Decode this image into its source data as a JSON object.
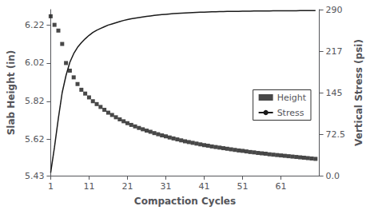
{
  "chart_data": {
    "type": "line",
    "xlabel": "Compaction Cycles",
    "ylabel": "Slab Height (in)",
    "y2label": "Vertical Stress (psi)",
    "xlim": [
      1,
      71
    ],
    "xticks": [
      1,
      11,
      21,
      31,
      41,
      51,
      61
    ],
    "ylim": [
      5.43,
      6.3
    ],
    "yticks": [
      5.43,
      5.62,
      5.82,
      6.02,
      6.22
    ],
    "y2lim": [
      0.0,
      290.0
    ],
    "y2ticks": [
      {
        "value": 0.0,
        "label": "0.0"
      },
      72.5,
      145,
      217,
      290
    ],
    "grid": false,
    "legend": "right",
    "x": [
      1,
      2,
      3,
      4,
      5,
      6,
      7,
      8,
      9,
      10,
      11,
      12,
      13,
      14,
      15,
      16,
      17,
      18,
      19,
      20,
      21,
      22,
      23,
      24,
      25,
      26,
      27,
      28,
      29,
      30,
      31,
      32,
      33,
      34,
      35,
      36,
      37,
      38,
      39,
      40,
      41,
      42,
      43,
      44,
      45,
      46,
      47,
      48,
      49,
      50,
      51,
      52,
      53,
      54,
      55,
      56,
      57,
      58,
      59,
      60,
      61,
      62,
      63,
      64,
      65,
      66,
      67,
      68,
      69,
      70
    ],
    "series": [
      {
        "name": "Height",
        "type": "scatter",
        "marker": "square",
        "color": "#1a1a1a",
        "values": [
          6.265,
          6.22,
          6.19,
          6.12,
          6.02,
          5.98,
          5.945,
          5.91,
          5.88,
          5.86,
          5.84,
          5.82,
          5.805,
          5.79,
          5.775,
          5.76,
          5.748,
          5.736,
          5.725,
          5.715,
          5.705,
          5.696,
          5.688,
          5.68,
          5.673,
          5.666,
          5.66,
          5.653,
          5.647,
          5.641,
          5.636,
          5.63,
          5.625,
          5.62,
          5.615,
          5.61,
          5.606,
          5.602,
          5.598,
          5.594,
          5.59,
          5.587,
          5.583,
          5.58,
          5.577,
          5.574,
          5.571,
          5.568,
          5.565,
          5.562,
          5.56,
          5.557,
          5.554,
          5.552,
          5.549,
          5.547,
          5.545,
          5.542,
          5.54,
          5.538,
          5.536,
          5.534,
          5.532,
          5.53,
          5.528,
          5.526,
          5.524,
          5.522,
          5.52,
          5.518
        ]
      },
      {
        "name": "Stress",
        "type": "line",
        "axis": "y2",
        "line_style": "solid",
        "color": "#1a1a1a",
        "values": [
          5,
          50,
          100,
          145,
          175,
          198,
          213,
          224,
          232,
          239,
          245,
          250,
          254,
          257,
          260,
          263,
          265,
          267,
          269,
          271,
          272.5,
          274,
          275,
          276,
          277,
          278,
          279,
          279.8,
          280.5,
          281.2,
          281.8,
          282.4,
          282.9,
          283.4,
          283.8,
          284.2,
          284.5,
          284.8,
          285.1,
          285.4,
          285.6,
          285.8,
          286.0,
          286.2,
          286.4,
          286.6,
          286.7,
          286.8,
          286.9,
          287.0,
          287.1,
          287.2,
          287.3,
          287.4,
          287.5,
          287.6,
          287.65,
          287.7,
          287.75,
          287.8,
          287.85,
          287.9,
          287.95,
          288.0,
          288.05,
          288.1,
          288.15,
          288.2,
          288.25,
          288.3
        ]
      }
    ]
  }
}
